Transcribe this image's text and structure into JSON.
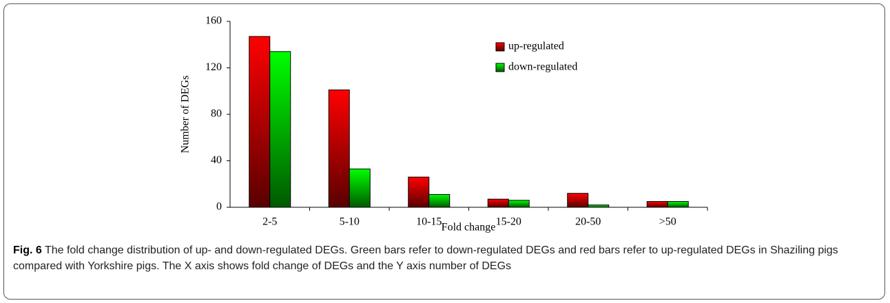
{
  "chart_data": {
    "type": "bar",
    "xlabel": "Fold change",
    "ylabel": "Number of DEGs",
    "categories": [
      "2-5",
      "5-10",
      "10-15",
      "15-20",
      "20-50",
      ">50"
    ],
    "series": [
      {
        "name": "up-regulated",
        "color": "#ff0000",
        "values": [
          147,
          101,
          26,
          7,
          12,
          5
        ]
      },
      {
        "name": "down-regulated",
        "color": "#00ff00",
        "values": [
          134,
          33,
          11,
          6,
          2,
          5
        ]
      }
    ],
    "ylim": [
      0,
      160
    ],
    "yticks": [
      0,
      40,
      80,
      120,
      160
    ],
    "grid": false,
    "legend": "top-right"
  },
  "caption": {
    "label": "Fig. 6",
    "text": "The fold change distribution of up- and down-regulated DEGs. Green bars refer to down-regulated DEGs and red bars refer to up-regulated DEGs in Shaziling pigs compared with Yorkshire pigs. The X axis shows fold change of DEGs and the Y axis number of DEGs"
  }
}
